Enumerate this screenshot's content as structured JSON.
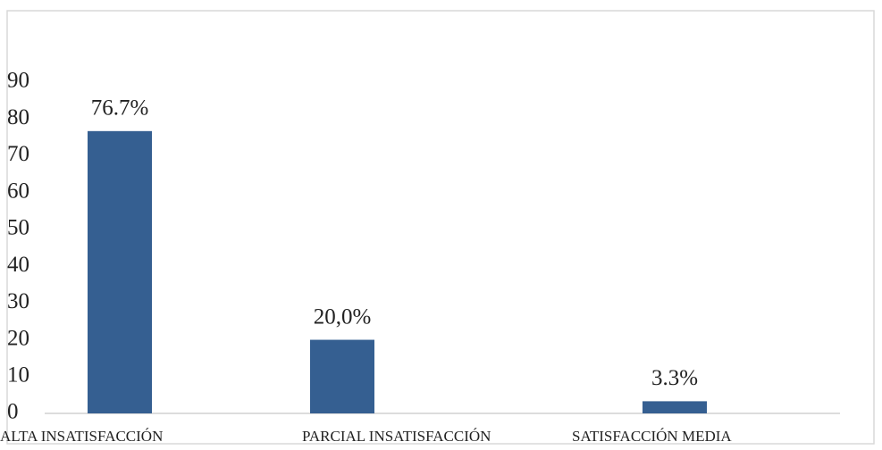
{
  "chart_data": {
    "type": "bar",
    "categories": [
      "ALTA INSATISFACCIÓN",
      "PARCIAL INSATISFACCIÓN",
      "SATISFACCIÓN MEDIA"
    ],
    "values": [
      76.7,
      20.0,
      3.3
    ],
    "value_labels": [
      "76.7%",
      "20,0%",
      "3.3%"
    ],
    "color": "#355f91",
    "ylim": [
      0,
      90
    ],
    "yticks": [
      0,
      10,
      20,
      30,
      40,
      50,
      60,
      70,
      80,
      90
    ],
    "grid": false
  }
}
